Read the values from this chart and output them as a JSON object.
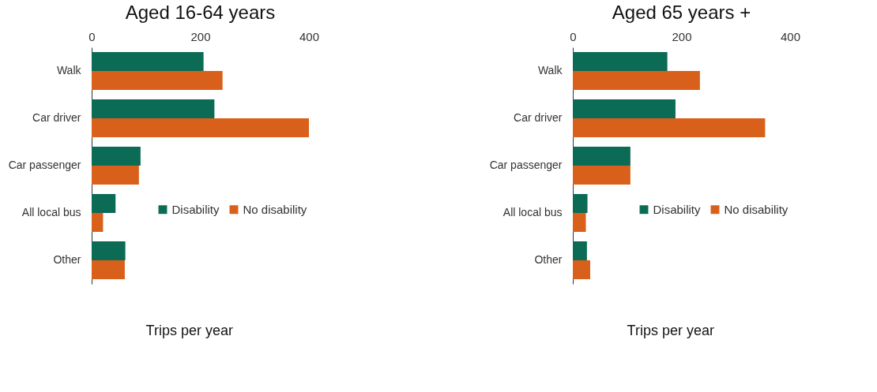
{
  "chart_data": [
    {
      "type": "bar",
      "orientation": "horizontal",
      "title": "Aged 16-64 years",
      "xlabel": "Trips per year",
      "categories": [
        "Walk",
        "Car driver",
        "Car passenger",
        "All local bus",
        "Other"
      ],
      "series": [
        {
          "name": "Disability",
          "color": "#0b6b55",
          "values": [
            206,
            226,
            90,
            44,
            62
          ]
        },
        {
          "name": "No disability",
          "color": "#d9601a",
          "values": [
            241,
            400,
            87,
            21,
            61
          ]
        }
      ],
      "xlim": [
        0,
        400
      ],
      "xticks": [
        0,
        200,
        400
      ],
      "grid": false,
      "legend": "right"
    },
    {
      "type": "bar",
      "orientation": "horizontal",
      "title": "Aged 65 years +",
      "xlabel": "Trips per year",
      "categories": [
        "Walk",
        "Car driver",
        "Car passenger",
        "All local bus",
        "Other"
      ],
      "series": [
        {
          "name": "Disability",
          "color": "#0b6b55",
          "values": [
            174,
            189,
            106,
            27,
            26
          ]
        },
        {
          "name": "No disability",
          "color": "#d9601a",
          "values": [
            234,
            354,
            106,
            24,
            32
          ]
        }
      ],
      "xlim": [
        0,
        400
      ],
      "xticks": [
        0,
        200,
        400
      ],
      "grid": false,
      "legend": "right"
    }
  ]
}
